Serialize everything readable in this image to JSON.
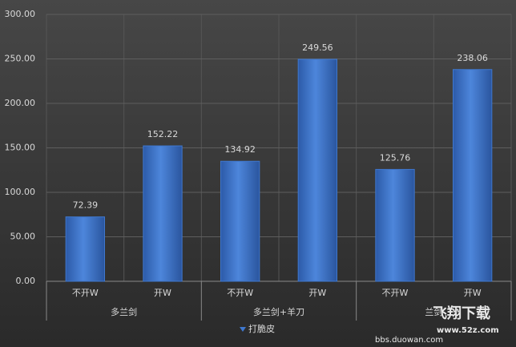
{
  "chart_data": {
    "type": "bar",
    "categories": [
      "不开W",
      "开W",
      "不开W",
      "开W",
      "不开W",
      "开W"
    ],
    "category_groups": [
      "多兰剑",
      "多兰剑+羊刀",
      "兰剑"
    ],
    "series": [
      {
        "name": "打脆皮",
        "color": "#3f78cf",
        "values": [
          72.39,
          152.22,
          134.92,
          249.56,
          125.76,
          238.06
        ]
      }
    ],
    "ylim": [
      0,
      300
    ],
    "yticks": [
      {
        "value": 0,
        "label": "0.00"
      },
      {
        "value": 50,
        "label": "50.00"
      },
      {
        "value": 100,
        "label": "100.00"
      },
      {
        "value": 150,
        "label": "150.00"
      },
      {
        "value": 200,
        "label": "200.00"
      },
      {
        "value": 250,
        "label": "250.00"
      },
      {
        "value": 300,
        "label": "300.00"
      }
    ],
    "grid": true,
    "legend": "bottom"
  },
  "watermarks": [
    "飞翔下载",
    "www.52z.com",
    "bbs.duowan.com"
  ]
}
